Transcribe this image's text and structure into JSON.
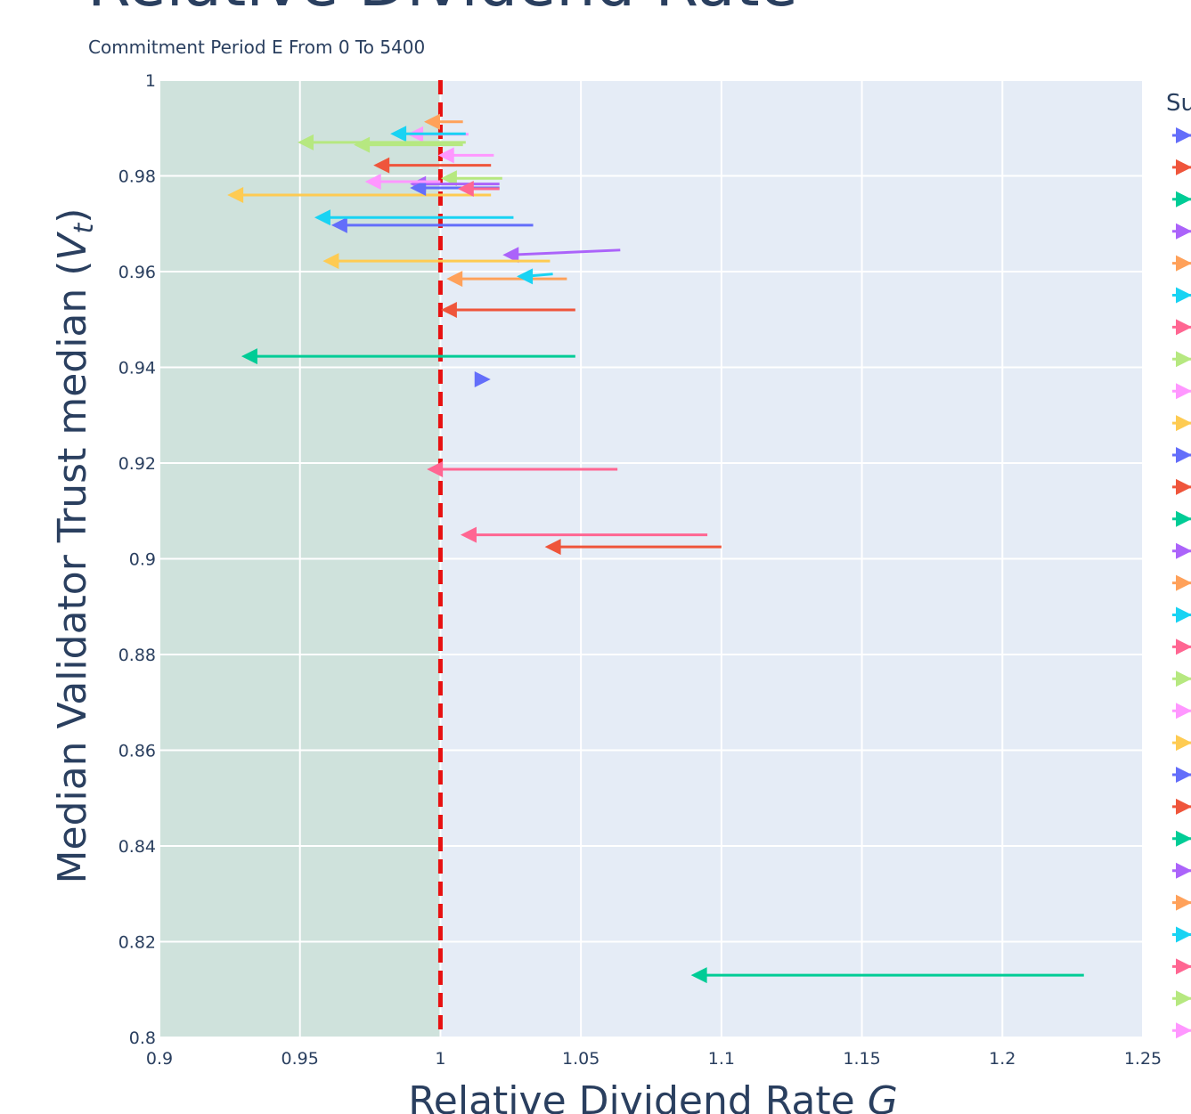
{
  "chart_data": {
    "type": "scatter",
    "title": "Relative Dividend Rate",
    "subtitle": "Commitment Period E From 0 To 5400",
    "xlabel_text": "Relative Dividend Rate ",
    "xlabel_var": "G",
    "ylabel_text": "Median Validator Trust median (",
    "ylabel_var": "V",
    "ylabel_sub": "t",
    "ylabel_close": ")",
    "legend_title": "Su",
    "legend_position": "right",
    "xlim": [
      0.9,
      1.25
    ],
    "ylim": [
      0.8,
      1.0
    ],
    "xticks": [
      "0.9",
      "0.95",
      "1",
      "1.05",
      "1.1",
      "1.15",
      "1.2",
      "1.25"
    ],
    "yticks": [
      "0.8",
      "0.82",
      "0.84",
      "0.86",
      "0.88",
      "0.9",
      "0.92",
      "0.94",
      "0.96",
      "0.98",
      "1"
    ],
    "grid": true,
    "reference_line": {
      "x": 1.0,
      "color": "#e81010",
      "style": "dashed"
    },
    "shaded_region": {
      "x_from": 0.9,
      "x_to": 1.0,
      "color": "#cfe2dc"
    },
    "series": [
      {
        "color": "#636efa",
        "x": [
          1.015
        ],
        "y": [
          0.9375
        ],
        "marker": "triangle-right"
      },
      {
        "color": "#ef553b",
        "x": [
          1.048,
          1.003
        ],
        "y": [
          0.952,
          0.952
        ]
      },
      {
        "color": "#00cc96",
        "x": [
          1.048,
          0.932
        ],
        "y": [
          0.9423,
          0.9423
        ]
      },
      {
        "color": "#ab63fa",
        "x": [
          1.064,
          1.025
        ],
        "y": [
          0.9645,
          0.9635
        ]
      },
      {
        "color": "#ffa15a",
        "x": [
          1.045,
          1.005
        ],
        "y": [
          0.9585,
          0.9585
        ]
      },
      {
        "color": "#19d3f3",
        "x": [
          1.04,
          1.03
        ],
        "y": [
          0.9595,
          0.959
        ]
      },
      {
        "color": "#ff6692",
        "x": [
          1.063,
          0.998
        ],
        "y": [
          0.9187,
          0.9187
        ]
      },
      {
        "color": "#b6e880",
        "x": [
          1.022,
          1.003
        ],
        "y": [
          0.9795,
          0.9795
        ]
      },
      {
        "color": "#ff97ff",
        "x": [
          1.019,
          1.002
        ],
        "y": [
          0.9843,
          0.9843
        ]
      },
      {
        "color": "#fecb52",
        "x": [
          1.039,
          0.961
        ],
        "y": [
          0.9622,
          0.9622
        ]
      },
      {
        "color": "#636efa",
        "x": [
          1.033,
          0.964
        ],
        "y": [
          0.9697,
          0.9697
        ]
      },
      {
        "color": "#ef553b",
        "x": [
          1.1,
          1.04
        ],
        "y": [
          0.9025,
          0.9025
        ]
      },
      {
        "color": "#00cc96",
        "x": [
          1.229,
          1.092
        ],
        "y": [
          0.813,
          0.813
        ]
      },
      {
        "color": "#ab63fa",
        "x": [
          1.021,
          0.992
        ],
        "y": [
          0.9783,
          0.9783
        ]
      },
      {
        "color": "#ffa15a",
        "x": [
          1.008,
          0.997
        ],
        "y": [
          0.9913,
          0.9913
        ]
      },
      {
        "color": "#19d3f3",
        "x": [
          1.026,
          0.958
        ],
        "y": [
          0.9713,
          0.9713
        ]
      },
      {
        "color": "#ff6692",
        "x": [
          1.095,
          1.01
        ],
        "y": [
          0.905,
          0.905
        ]
      },
      {
        "color": "#b6e880",
        "x": [
          1.008,
          0.972
        ],
        "y": [
          0.9865,
          0.9865
        ]
      },
      {
        "color": "#ff97ff",
        "x": [
          1.01,
          0.991
        ],
        "y": [
          0.9887,
          0.9887
        ]
      },
      {
        "color": "#fecb52",
        "x": [
          1.018,
          0.927
        ],
        "y": [
          0.976,
          0.976
        ]
      },
      {
        "color": "#636efa",
        "x": [
          1.021,
          0.992
        ],
        "y": [
          0.9775,
          0.9775
        ]
      },
      {
        "color": "#ef553b",
        "x": [
          1.018,
          0.979
        ],
        "y": [
          0.9822,
          0.9822
        ]
      },
      {
        "color": "#00cc96",
        "x": [],
        "y": []
      },
      {
        "color": "#ab63fa",
        "x": [],
        "y": []
      },
      {
        "color": "#ffa15a",
        "x": [],
        "y": []
      },
      {
        "color": "#19d3f3",
        "x": [
          1.009,
          0.985
        ],
        "y": [
          0.9888,
          0.9888
        ]
      },
      {
        "color": "#ff6692",
        "x": [
          1.021,
          1.009
        ],
        "y": [
          0.9773,
          0.9773
        ]
      },
      {
        "color": "#b6e880",
        "x": [
          1.009,
          0.952
        ],
        "y": [
          0.987,
          0.987
        ]
      },
      {
        "color": "#ff97ff",
        "x": [
          1.0,
          0.976
        ],
        "y": [
          0.9788,
          0.9788
        ]
      }
    ]
  }
}
